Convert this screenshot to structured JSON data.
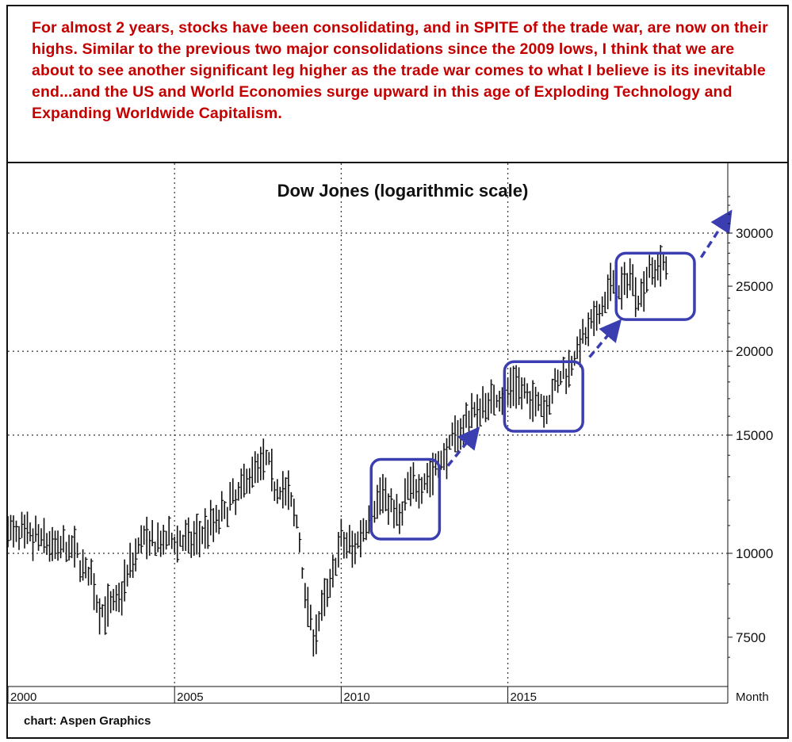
{
  "annotation": {
    "text": "For almost 2 years, stocks have been consolidating, and in SPITE of the trade war, are now on their highs. Similar to the previous two major consolidations since the 2009 lows, I think that we are about to see another significant leg higher as the trade war comes to what I believe is its inevitable end...and the US and World Economies surge upward in this age of Exploding Technology and Expanding Worldwide Capitalism.",
    "color": "#c40000"
  },
  "credit": "chart: Aspen Graphics",
  "chart_data": {
    "type": "bar",
    "subtype": "ohlc-range-bars",
    "title": "Dow Jones (logarithmic scale)",
    "x_unit_label": "Month",
    "y_scale": "log",
    "ylim": [
      6400,
      36000
    ],
    "xlim": [
      2000.0,
      2021.6
    ],
    "y_ticks": [
      7500,
      10000,
      15000,
      20000,
      25000,
      30000
    ],
    "y_tick_labels": [
      "7500",
      "10000",
      "15000",
      "20000",
      "25000",
      "30000"
    ],
    "y_gridlines": [
      10000,
      15000,
      20000,
      30000
    ],
    "x_ticks": [
      2000,
      2005,
      2010,
      2015
    ],
    "x_tick_labels": [
      "2000",
      "2005",
      "2010",
      "2015"
    ],
    "x_gridlines": [
      2005,
      2010,
      2015
    ],
    "grid": "dotted",
    "bar_color": "#111111",
    "annotation_color": "#3a3eb0",
    "series": {
      "x": [
        2000.0,
        2000.5,
        2001.0,
        2001.5,
        2002.0,
        2002.5,
        2002.75,
        2003.0,
        2003.25,
        2003.5,
        2004.0,
        2004.5,
        2005.0,
        2005.5,
        2006.0,
        2006.5,
        2007.0,
        2007.4,
        2007.8,
        2008.0,
        2008.4,
        2008.7,
        2008.9,
        2009.2,
        2009.5,
        2010.0,
        2010.4,
        2010.7,
        2011.0,
        2011.3,
        2011.6,
        2011.75,
        2012.0,
        2012.5,
        2013.0,
        2013.5,
        2014.0,
        2014.5,
        2015.0,
        2015.3,
        2015.6,
        2015.9,
        2016.1,
        2016.5,
        2016.85,
        2017.0,
        2017.5,
        2017.9,
        2018.1,
        2018.3,
        2018.7,
        2018.95,
        2019.2,
        2019.5,
        2019.8
      ],
      "close": [
        10800,
        10600,
        10500,
        10200,
        10100,
        9100,
        8200,
        8300,
        8400,
        9100,
        10500,
        10300,
        10500,
        10400,
        11000,
        11500,
        12500,
        13500,
        13800,
        12700,
        12300,
        11000,
        8800,
        7500,
        8500,
        10400,
        10200,
        11000,
        11800,
        12400,
        11500,
        11200,
        12500,
        12800,
        13700,
        15200,
        16300,
        16900,
        17500,
        18000,
        16800,
        17000,
        16500,
        18000,
        19000,
        19800,
        21700,
        23500,
        25500,
        24000,
        26300,
        23600,
        26500,
        26800,
        27000
      ],
      "bar_range_pct": 0.06
    },
    "annotations": [
      {
        "kind": "box",
        "x_range": [
          2010.9,
          2012.95
        ],
        "y_range": [
          10500,
          13800
        ]
      },
      {
        "kind": "arrow",
        "from": [
          2013.2,
          13500
        ],
        "to": [
          2013.95,
          15000
        ]
      },
      {
        "kind": "box",
        "x_range": [
          2014.9,
          2017.25
        ],
        "y_range": [
          15200,
          19300
        ]
      },
      {
        "kind": "arrow",
        "from": [
          2017.45,
          19600
        ],
        "to": [
          2018.2,
          21700
        ]
      },
      {
        "kind": "box",
        "x_range": [
          2018.25,
          2020.6
        ],
        "y_range": [
          22300,
          28000
        ]
      },
      {
        "kind": "arrow",
        "from": [
          2020.8,
          27600
        ],
        "to": [
          2021.55,
          31500
        ]
      }
    ]
  }
}
